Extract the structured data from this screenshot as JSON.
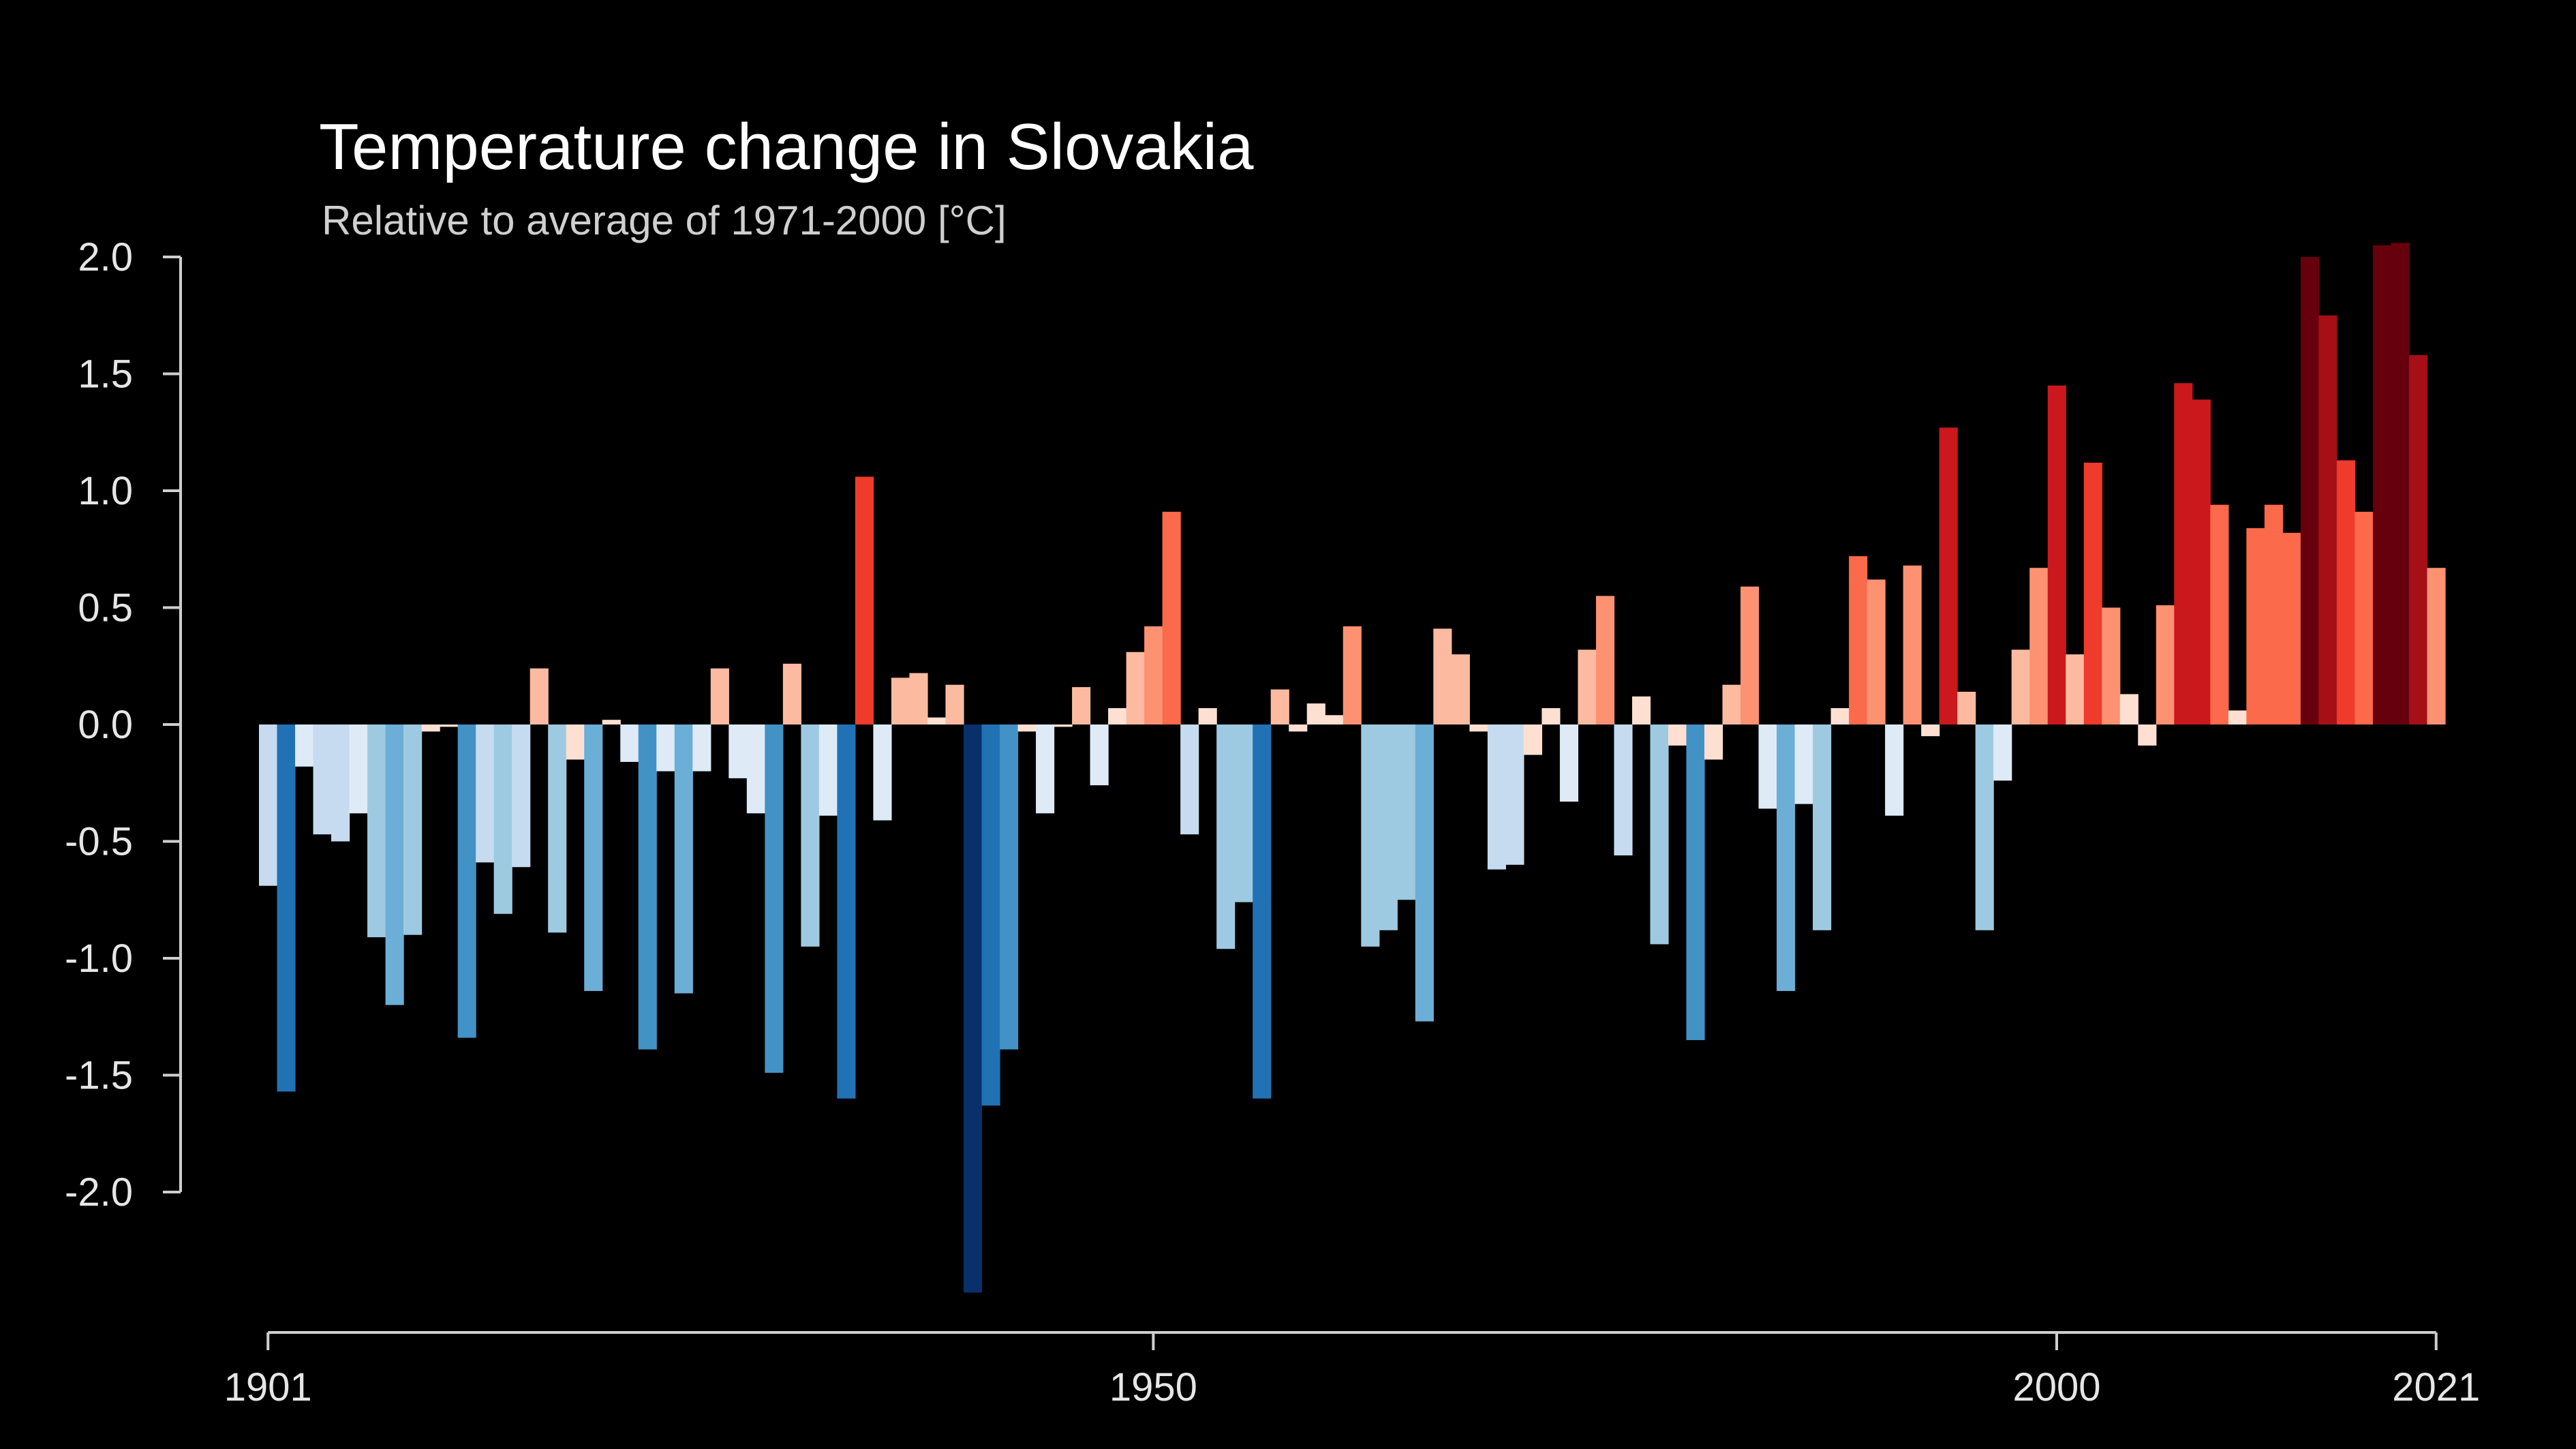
{
  "chart_data": {
    "type": "bar",
    "title": "Temperature change in Slovakia",
    "subtitle": "Relative to average of 1971-2000  [°C]",
    "xlabel": "",
    "ylabel": "",
    "x_start": 1901,
    "x_end": 2021,
    "xlim": [
      1901,
      2021
    ],
    "ylim": [
      -2.5,
      2.1
    ],
    "x_ticks": [
      1901,
      1950,
      2000,
      2021
    ],
    "x_tick_labels": [
      "1901",
      "1950",
      "2000",
      "2021"
    ],
    "y_ticks": [
      2.0,
      1.5,
      1.0,
      0.5,
      0.0,
      -0.5,
      -1.0,
      -1.5,
      -2.0
    ],
    "y_tick_labels": [
      "2.0",
      "1.5",
      "1.0",
      "0.5",
      "0.0",
      "-0.5",
      "-1.0",
      "-1.5",
      "-2.0"
    ],
    "grid": false,
    "legend": "none",
    "background_color": "#000000",
    "color_scale": {
      "name": "warming-stripes RdBu",
      "vmin": -2.4,
      "vmax": 2.1,
      "colors": [
        "#08306b",
        "#08519c",
        "#2171b5",
        "#4292c6",
        "#6baed6",
        "#9ecae1",
        "#c6dbef",
        "#deebf7",
        "#fee0d2",
        "#fcbba1",
        "#fc9272",
        "#fb6a4a",
        "#ef3b2c",
        "#cb181d",
        "#a50f15",
        "#67000d"
      ]
    },
    "years": [
      1901,
      1902,
      1903,
      1904,
      1905,
      1906,
      1907,
      1908,
      1909,
      1910,
      1911,
      1912,
      1913,
      1914,
      1915,
      1916,
      1917,
      1918,
      1919,
      1920,
      1921,
      1922,
      1923,
      1924,
      1925,
      1926,
      1927,
      1928,
      1929,
      1930,
      1931,
      1932,
      1933,
      1934,
      1935,
      1936,
      1937,
      1938,
      1939,
      1940,
      1941,
      1942,
      1943,
      1944,
      1945,
      1946,
      1947,
      1948,
      1949,
      1950,
      1951,
      1952,
      1953,
      1954,
      1955,
      1956,
      1957,
      1958,
      1959,
      1960,
      1961,
      1962,
      1963,
      1964,
      1965,
      1966,
      1967,
      1968,
      1969,
      1970,
      1971,
      1972,
      1973,
      1974,
      1975,
      1976,
      1977,
      1978,
      1979,
      1980,
      1981,
      1982,
      1983,
      1984,
      1985,
      1986,
      1987,
      1988,
      1989,
      1990,
      1991,
      1992,
      1993,
      1994,
      1995,
      1996,
      1997,
      1998,
      1999,
      2000,
      2001,
      2002,
      2003,
      2004,
      2005,
      2006,
      2007,
      2008,
      2009,
      2010,
      2011,
      2012,
      2013,
      2014,
      2015,
      2016,
      2017,
      2018,
      2019,
      2020,
      2021
    ],
    "values": [
      -0.69,
      -1.57,
      -0.18,
      -0.47,
      -0.5,
      -0.38,
      -0.91,
      -1.2,
      -0.9,
      -0.03,
      -0.01,
      -1.34,
      -0.59,
      -0.81,
      -0.61,
      0.24,
      -0.89,
      -0.15,
      -1.14,
      0.02,
      -0.16,
      -1.39,
      -0.2,
      -1.15,
      -0.2,
      0.24,
      -0.23,
      -0.38,
      -1.49,
      0.26,
      -0.95,
      -0.39,
      -1.6,
      1.06,
      -0.41,
      0.2,
      0.22,
      0.03,
      0.17,
      -2.43,
      -1.63,
      -1.39,
      -0.03,
      -0.38,
      -0.01,
      0.16,
      -0.26,
      0.07,
      0.31,
      0.42,
      0.91,
      -0.47,
      0.07,
      -0.96,
      -0.76,
      -1.6,
      0.15,
      -0.03,
      0.09,
      0.04,
      0.42,
      -0.95,
      -0.88,
      -0.75,
      -1.27,
      0.41,
      0.3,
      -0.03,
      -0.62,
      -0.6,
      -0.13,
      0.07,
      -0.33,
      0.32,
      0.55,
      -0.56,
      0.12,
      -0.94,
      -0.09,
      -1.35,
      -0.15,
      0.17,
      0.59,
      -0.36,
      -1.14,
      -0.34,
      -0.88,
      0.07,
      0.72,
      0.62,
      -0.39,
      0.68,
      -0.05,
      1.27,
      0.14,
      -0.88,
      -0.24,
      0.32,
      0.67,
      1.45,
      0.3,
      1.12,
      0.5,
      0.13,
      -0.09,
      0.51,
      1.46,
      1.39,
      0.94,
      0.06,
      0.84,
      0.94,
      0.82,
      2.0,
      1.75,
      1.13,
      0.91,
      2.05,
      2.06,
      1.58,
      0.67
    ]
  }
}
